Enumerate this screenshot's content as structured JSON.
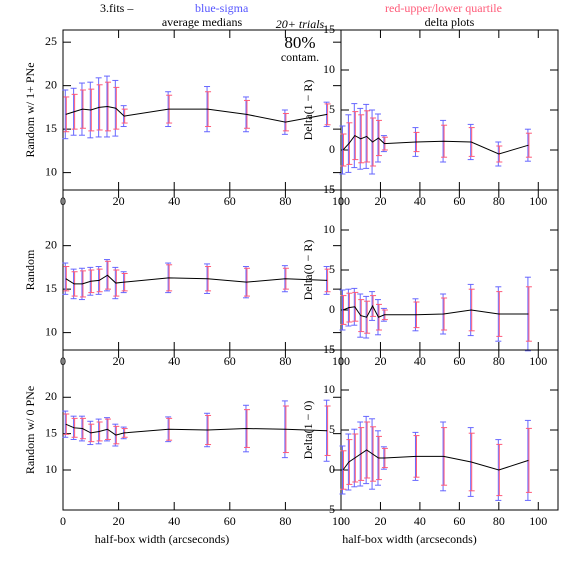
{
  "header": {
    "file": "3.fits –",
    "sigma_note": "blue-sigma",
    "quartile_note": "red-upper/lower quartile",
    "trials": "20+ trials",
    "contam_pct": "80%",
    "contam": "contam."
  },
  "chart_data": [
    {
      "type": "line",
      "title": "average medians",
      "ylabel": "Random w/ 1+ PNe",
      "xlim": [
        0,
        100
      ],
      "ylim": [
        8,
        26.4
      ],
      "xticks": [
        0,
        20,
        40,
        60,
        80,
        100
      ],
      "yticks": [
        10,
        15,
        20,
        25
      ],
      "x": [
        1,
        4,
        7,
        10,
        13,
        16,
        19,
        22,
        38,
        52,
        66,
        80,
        95
      ],
      "series": [
        {
          "color": "#000000",
          "sigma_color": "#6666ff",
          "quartile_color": "#ff5a78",
          "values": [
            16.7,
            17,
            17.3,
            17.2,
            17.5,
            17.6,
            17.4,
            16.5,
            17.3,
            17.3,
            16.7,
            15.8,
            16.7
          ],
          "sigma": [
            2.8,
            2.7,
            3,
            3.2,
            3.4,
            3.5,
            3.2,
            1.2,
            2,
            2.6,
            2,
            1.4,
            1.4
          ],
          "quartile": [
            2,
            2,
            2.2,
            2.4,
            2.6,
            2.8,
            2.4,
            0.8,
            1.6,
            2,
            1.6,
            1,
            1.2
          ]
        }
      ]
    },
    {
      "type": "line",
      "title": "delta plots",
      "ylabel": "Delta(1 − R)",
      "xlim": [
        0,
        110
      ],
      "ylim": [
        -5,
        15
      ],
      "xticks": [
        0,
        20,
        40,
        60,
        80,
        100
      ],
      "yticks": [
        -5,
        0,
        5,
        10,
        15
      ],
      "x": [
        1,
        4,
        7,
        10,
        13,
        16,
        19,
        22,
        38,
        52,
        66,
        80,
        95
      ],
      "series": [
        {
          "color": "#000000",
          "sigma_color": "#6666ff",
          "quartile_color": "#ff5a78",
          "values": [
            0,
            0.8,
            1.8,
            1.4,
            1.7,
            1,
            1.5,
            0.8,
            1,
            1.1,
            1,
            -0.5,
            0.6
          ],
          "sigma": [
            3,
            3.6,
            4,
            3.8,
            4,
            4,
            3,
            1,
            1.8,
            2.6,
            2.2,
            1.5,
            2
          ],
          "quartile": [
            2,
            2.6,
            3,
            3,
            3.2,
            3,
            2.2,
            0.8,
            1.2,
            2,
            1.8,
            1,
            1.5
          ]
        }
      ]
    },
    {
      "type": "line",
      "ylabel": "Random",
      "xlim": [
        0,
        100
      ],
      "ylim": [
        8,
        26.4
      ],
      "xticks": [
        0,
        20,
        40,
        60,
        80,
        100
      ],
      "yticks": [
        10,
        15,
        20
      ],
      "x": [
        1,
        4,
        7,
        10,
        13,
        16,
        19,
        22,
        38,
        52,
        66,
        80,
        95
      ],
      "series": [
        {
          "color": "#000000",
          "sigma_color": "#6666ff",
          "quartile_color": "#ff5a78",
          "values": [
            16.2,
            15.6,
            15.6,
            15.9,
            16,
            16.6,
            15.7,
            15.8,
            16.3,
            16.2,
            15.8,
            16.2,
            16
          ],
          "sigma": [
            1.8,
            1.7,
            1.8,
            1.6,
            1.6,
            1.8,
            1.8,
            1.2,
            1.7,
            1.7,
            1.8,
            1.5,
            1.6
          ],
          "quartile": [
            1.4,
            1.4,
            1.5,
            1.3,
            1.3,
            1.6,
            1.5,
            1,
            1.5,
            1.4,
            1.6,
            1.2,
            1.3
          ]
        }
      ]
    },
    {
      "type": "line",
      "ylabel": "Delta(0 − R)",
      "xlim": [
        0,
        110
      ],
      "ylim": [
        -5,
        15
      ],
      "xticks": [
        0,
        20,
        40,
        60,
        80,
        100
      ],
      "yticks": [
        -5,
        0,
        5,
        10,
        15
      ],
      "x": [
        1,
        4,
        7,
        10,
        13,
        16,
        19,
        22,
        38,
        52,
        66,
        80,
        95
      ],
      "series": [
        {
          "color": "#000000",
          "sigma_color": "#6666ff",
          "quartile_color": "#ff5a78",
          "values": [
            0,
            0.3,
            0.4,
            -0.7,
            -0.9,
            0.5,
            -0.9,
            -0.6,
            -0.6,
            -0.5,
            0,
            -0.5,
            -0.5
          ],
          "sigma": [
            2.5,
            2.3,
            2.3,
            2.7,
            2.6,
            1.8,
            2.2,
            0.8,
            2,
            2.5,
            3.2,
            3.4,
            4.6
          ],
          "quartile": [
            1.8,
            1.8,
            1.8,
            2,
            2,
            1.3,
            1.6,
            0.6,
            1.6,
            2,
            2.6,
            2.8,
            3.4
          ]
        }
      ]
    },
    {
      "type": "line",
      "ylabel": "Random w/ 0 PNe",
      "xlabel": "half-box width (arcseconds)",
      "xlim": [
        0,
        100
      ],
      "ylim": [
        4.5,
        26.5
      ],
      "xticks": [
        0,
        20,
        40,
        60,
        80,
        100
      ],
      "yticks": [
        10,
        15,
        20
      ],
      "x": [
        1,
        4,
        7,
        10,
        13,
        16,
        19,
        22,
        38,
        52,
        66,
        80,
        95
      ],
      "series": [
        {
          "color": "#000000",
          "sigma_color": "#6666ff",
          "quartile_color": "#ff5a78",
          "values": [
            16.3,
            15.8,
            15.7,
            15.1,
            15.3,
            15.6,
            14.8,
            15.1,
            15.6,
            15.5,
            15.7,
            15.6,
            15.4
          ],
          "sigma": [
            1.8,
            1.6,
            1.7,
            1.6,
            1.7,
            1.6,
            1.5,
            0.8,
            1.7,
            2.3,
            3.2,
            3.9,
            4.2
          ],
          "quartile": [
            1.4,
            1.3,
            1.4,
            1.2,
            1.3,
            1.4,
            1.2,
            0.6,
            1.5,
            2,
            2.6,
            3.2,
            3.4
          ]
        }
      ]
    },
    {
      "type": "line",
      "ylabel": "Delta(1 − 0)",
      "xlabel": "half-box width (arcseconds)",
      "xlim": [
        0,
        110
      ],
      "ylim": [
        -5,
        15
      ],
      "xticks": [
        0,
        20,
        40,
        60,
        80,
        100
      ],
      "yticks": [
        -5,
        0,
        5,
        10,
        15
      ],
      "x": [
        1,
        4,
        7,
        10,
        13,
        16,
        19,
        22,
        38,
        52,
        66,
        80,
        95
      ],
      "series": [
        {
          "color": "#000000",
          "sigma_color": "#6666ff",
          "quartile_color": "#ff5a78",
          "values": [
            0,
            1,
            1.5,
            2,
            2.5,
            2,
            1.5,
            1.5,
            1.7,
            1.7,
            1,
            0,
            1.2
          ],
          "sigma": [
            3,
            3.5,
            3.6,
            4,
            4.2,
            4.4,
            3.4,
            1.4,
            3,
            4.3,
            4.3,
            3.8,
            5
          ],
          "quartile": [
            2.4,
            2.8,
            3,
            3.3,
            3.5,
            3.4,
            2.7,
            1.2,
            2.6,
            3.6,
            3.6,
            3.2,
            4
          ]
        }
      ]
    }
  ]
}
